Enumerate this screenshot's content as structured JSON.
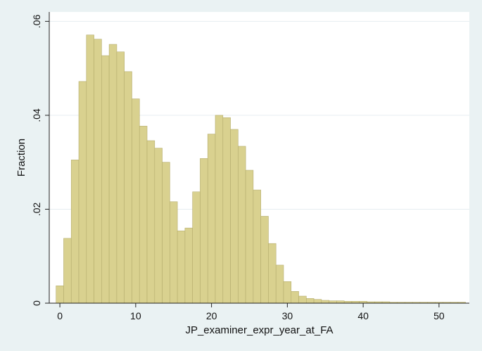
{
  "chart_data": {
    "type": "bar",
    "xlabel": "JP_examiner_expr_year_at_FA",
    "ylabel": "Fraction",
    "xlim": [
      -1.4,
      54
    ],
    "ylim": [
      0,
      0.062
    ],
    "bin_start": -0.5,
    "bin_width": 1,
    "x_ticks": [
      {
        "value": 0,
        "label": "0"
      },
      {
        "value": 10,
        "label": "10"
      },
      {
        "value": 20,
        "label": "20"
      },
      {
        "value": 30,
        "label": "30"
      },
      {
        "value": 40,
        "label": "40"
      },
      {
        "value": 50,
        "label": "50"
      }
    ],
    "y_ticks": [
      {
        "value": 0,
        "label": "0"
      },
      {
        "value": 0.02,
        "label": ".02"
      },
      {
        "value": 0.04,
        "label": ".04"
      },
      {
        "value": 0.06,
        "label": ".06"
      }
    ],
    "grid": true,
    "colors": {
      "bar_fill": "#d9d18f",
      "bar_stroke": "#b5ad6e",
      "plot_bg": "#ffffff",
      "outer_bg": "#eaf2f3",
      "grid": "#e6eef0",
      "axis": "#222222"
    },
    "values": [
      0.0037,
      0.0138,
      0.0305,
      0.0472,
      0.0571,
      0.0562,
      0.0527,
      0.0551,
      0.0535,
      0.0493,
      0.0435,
      0.0377,
      0.0346,
      0.033,
      0.03,
      0.0216,
      0.0154,
      0.016,
      0.0237,
      0.0308,
      0.036,
      0.04,
      0.0395,
      0.037,
      0.0334,
      0.0283,
      0.0241,
      0.0185,
      0.0127,
      0.0081,
      0.0046,
      0.0025,
      0.0015,
      0.001,
      0.0008,
      0.0006,
      0.0005,
      0.0005,
      0.0004,
      0.0004,
      0.0004,
      0.0003,
      0.0003,
      0.0003,
      0.0002,
      0.0002,
      0.0002,
      0.0002,
      0.0002,
      0.0002,
      0.0002,
      0.0002,
      0.0002,
      0.0002
    ]
  }
}
